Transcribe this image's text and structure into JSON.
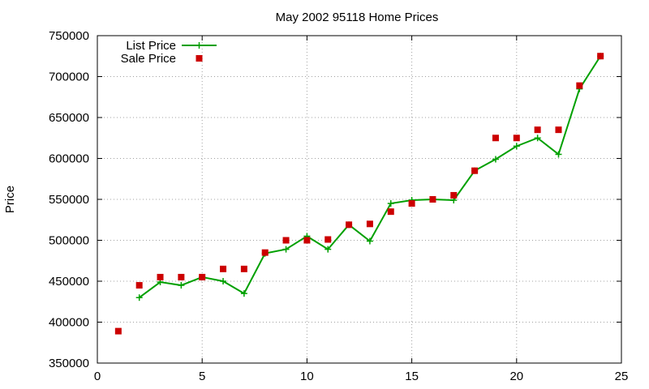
{
  "chart_data": {
    "type": "line",
    "title": "May 2002 95118 Home Prices",
    "xlabel": "",
    "ylabel": "Price",
    "xlim": [
      0,
      25
    ],
    "ylim": [
      350000,
      750000
    ],
    "xticks": [
      0,
      5,
      10,
      15,
      20,
      25
    ],
    "yticks": [
      350000,
      400000,
      450000,
      500000,
      550000,
      600000,
      650000,
      700000,
      750000
    ],
    "grid": true,
    "legend_position": "top-left",
    "series": [
      {
        "name": "List Price",
        "style": "line-with-plus-markers",
        "color": "#00a000",
        "x": [
          2,
          3,
          4,
          5,
          6,
          7,
          8,
          9,
          10,
          11,
          12,
          13,
          14,
          15,
          16,
          17,
          18,
          19,
          20,
          21,
          22,
          23,
          24
        ],
        "values": [
          430000,
          449000,
          445000,
          455000,
          450000,
          435000,
          484000,
          489000,
          505000,
          489000,
          519000,
          499000,
          545000,
          549000,
          550000,
          549000,
          585000,
          599000,
          615000,
          625000,
          605000,
          685000,
          725000
        ]
      },
      {
        "name": "Sale Price",
        "style": "square-markers",
        "color": "#cc0000",
        "x": [
          1,
          2,
          3,
          4,
          5,
          6,
          7,
          8,
          9,
          10,
          11,
          12,
          13,
          14,
          15,
          16,
          17,
          18,
          19,
          20,
          21,
          22,
          23,
          24
        ],
        "values": [
          389000,
          445000,
          455000,
          455000,
          455000,
          465000,
          465000,
          485000,
          500000,
          500000,
          501000,
          519000,
          520000,
          535000,
          545000,
          550000,
          555000,
          585000,
          625000,
          625000,
          635000,
          635000,
          689000,
          725000
        ]
      }
    ]
  }
}
